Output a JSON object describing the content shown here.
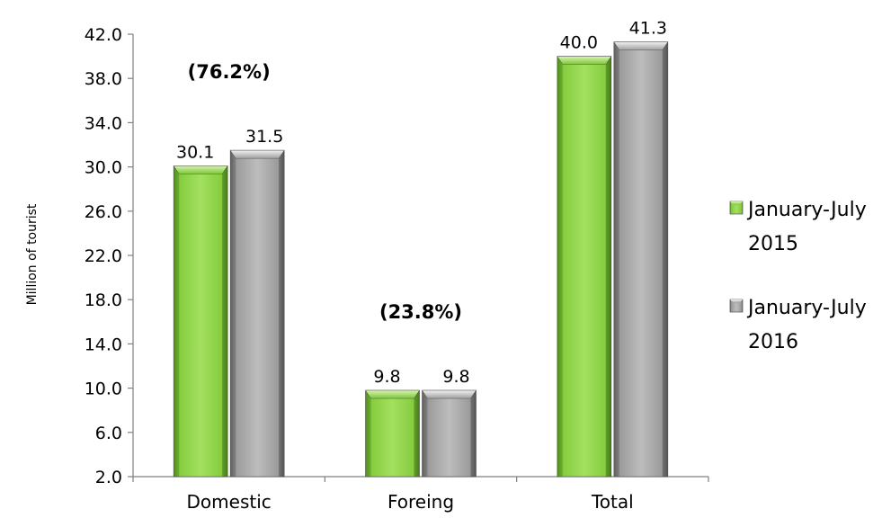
{
  "chart_data": {
    "type": "bar",
    "categories": [
      "Domestic",
      "Foreing",
      "Total"
    ],
    "series": [
      {
        "name": "January-July 2015",
        "legend_lines": [
          "January-July",
          "2015"
        ],
        "values": [
          30.1,
          9.8,
          40.0
        ],
        "labels": [
          "30.1",
          "9.8",
          "40.0"
        ],
        "color": "#8fd44a"
      },
      {
        "name": "January-July 2016",
        "legend_lines": [
          "January-July",
          "2016"
        ],
        "values": [
          31.5,
          9.8,
          41.3
        ],
        "labels": [
          "31.5",
          "9.8",
          "41.3"
        ],
        "color": "#a6a6a6"
      }
    ],
    "annotations": [
      {
        "category": "Domestic",
        "text": "(76.2%)"
      },
      {
        "category": "Foreing",
        "text": "(23.8%)"
      }
    ],
    "ylabel": "Million of tourist",
    "ylim": [
      2.0,
      42.0
    ],
    "yticks": [
      "2.0",
      "6.0",
      "10.0",
      "14.0",
      "18.0",
      "22.0",
      "26.0",
      "30.0",
      "34.0",
      "38.0",
      "42.0"
    ],
    "ytick_values": [
      2,
      6,
      10,
      14,
      18,
      22,
      26,
      30,
      34,
      38,
      42
    ],
    "grid": false,
    "legend_position": "right"
  }
}
